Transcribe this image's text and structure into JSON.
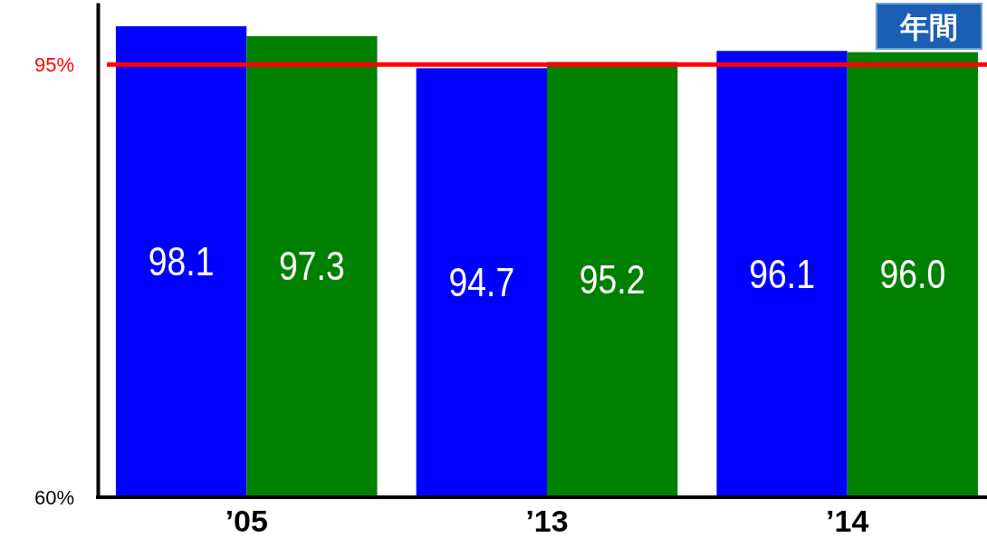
{
  "chart_data": {
    "type": "bar",
    "categories": [
      "’05",
      "’13",
      "’14"
    ],
    "series": [
      {
        "color": "#0000ff",
        "values": [
          98.1,
          94.7,
          96.1
        ],
        "value_labels": [
          "98.1",
          "94.7",
          "96.1"
        ]
      },
      {
        "color": "#008000",
        "values": [
          97.3,
          95.2,
          96.0
        ],
        "value_labels": [
          "97.3",
          "95.2",
          "96.0"
        ]
      }
    ],
    "ylim": [
      60,
      100
    ],
    "yticks": [
      {
        "value": 60,
        "label": "60%"
      },
      {
        "value": 95,
        "label": "95%"
      }
    ],
    "ref_lines": [
      {
        "axis": "y",
        "value": 95,
        "color": "#ff0000"
      }
    ],
    "annotations": [
      "年間"
    ]
  }
}
